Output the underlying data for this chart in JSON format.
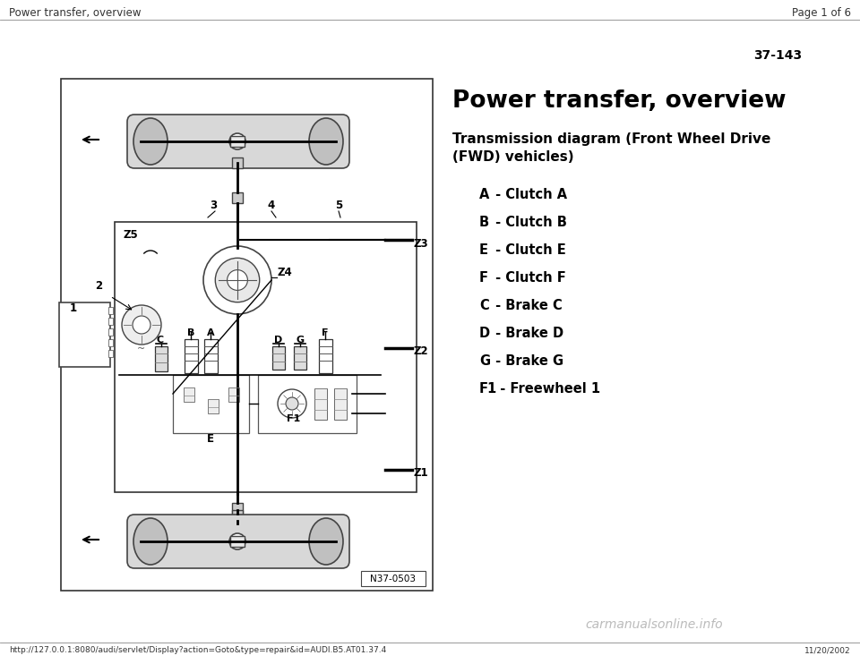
{
  "page_header_left": "Power transfer, overview",
  "page_header_right": "Page 1 of 6",
  "page_number": "37-143",
  "title": "Power transfer, overview",
  "subtitle_line1": "Transmission diagram (Front Wheel Drive",
  "subtitle_line2": "(FWD) vehicles)",
  "legend_items": [
    {
      "label": "A",
      "desc": " - Clutch A"
    },
    {
      "label": "B",
      "desc": " - Clutch B"
    },
    {
      "label": "E",
      "desc": " - Clutch E"
    },
    {
      "label": "F",
      "desc": " - Clutch F"
    },
    {
      "label": "C",
      "desc": " - Brake C"
    },
    {
      "label": "D",
      "desc": " - Brake D"
    },
    {
      "label": "G",
      "desc": " - Brake G"
    },
    {
      "label": "F1",
      "desc": "  - Freewheel 1"
    }
  ],
  "diagram_label": "N37-0503",
  "footer_url": "http://127.0.0.1:8080/audi/servlet/Display?action=Goto&type=repair&id=AUDI.B5.AT01.37.4",
  "footer_date": "11/20/2002",
  "footer_watermark": "carmanualsonline.info",
  "bg_color": "#ffffff",
  "text_color": "#000000"
}
